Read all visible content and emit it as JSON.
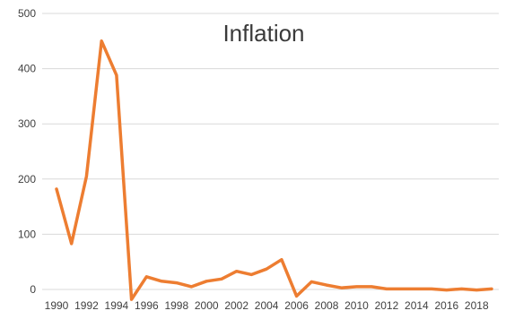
{
  "chart_data": {
    "type": "line",
    "title": "Inflation",
    "xlabel": "",
    "ylabel": "",
    "ylim": [
      -20,
      500
    ],
    "yticks": [
      0,
      100,
      200,
      300,
      400,
      500
    ],
    "xticks": [
      1990,
      1992,
      1994,
      1996,
      1998,
      2000,
      2002,
      2004,
      2006,
      2008,
      2010,
      2012,
      2014,
      2016,
      2018
    ],
    "grid": "horizontal",
    "legend": "none",
    "line_color": "#ed7d31",
    "series": [
      {
        "x": [
          1990,
          1991,
          1992,
          1993,
          1994,
          1995,
          1996,
          1997,
          1998,
          1999,
          2000,
          2001,
          2002,
          2003,
          2004,
          2005,
          2006,
          2007,
          2008,
          2009,
          2010,
          2011,
          2012,
          2013,
          2014,
          2015,
          2016,
          2017,
          2018,
          2019
        ],
        "values": [
          182,
          83,
          205,
          450,
          388,
          -18,
          23,
          15,
          12,
          5,
          15,
          19,
          33,
          27,
          37,
          54,
          -12,
          14,
          8,
          3,
          5,
          5,
          1,
          1,
          1,
          1,
          -1,
          1,
          -1,
          1
        ]
      }
    ]
  }
}
